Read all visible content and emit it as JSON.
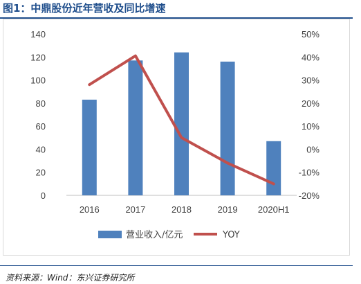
{
  "figure": {
    "title": "图1：中鼎股份近年营收及同比增速",
    "source": "资料来源：Wind：东兴证券研究所"
  },
  "chart_data": {
    "type": "bar",
    "categories": [
      "2016",
      "2017",
      "2018",
      "2019",
      "2020H1"
    ],
    "series": [
      {
        "name": "营业收入/亿元",
        "type": "bar",
        "axis": "left",
        "values": [
          83,
          117,
          124,
          116,
          47
        ]
      },
      {
        "name": "YOY",
        "type": "line",
        "axis": "right",
        "values": [
          28,
          40.5,
          5,
          -6,
          -15
        ]
      }
    ],
    "y_left": {
      "min": 0,
      "max": 140,
      "ticks": [
        "0",
        "20",
        "40",
        "60",
        "80",
        "100",
        "120",
        "140"
      ]
    },
    "y_right": {
      "min": -20,
      "max": 50,
      "ticks": [
        "-20%",
        "-10%",
        "0%",
        "10%",
        "20%",
        "30%",
        "40%",
        "50%"
      ]
    },
    "grid": false,
    "legend": "bottom",
    "colors": {
      "bar": "#4f81bd",
      "line": "#c0504d"
    }
  }
}
